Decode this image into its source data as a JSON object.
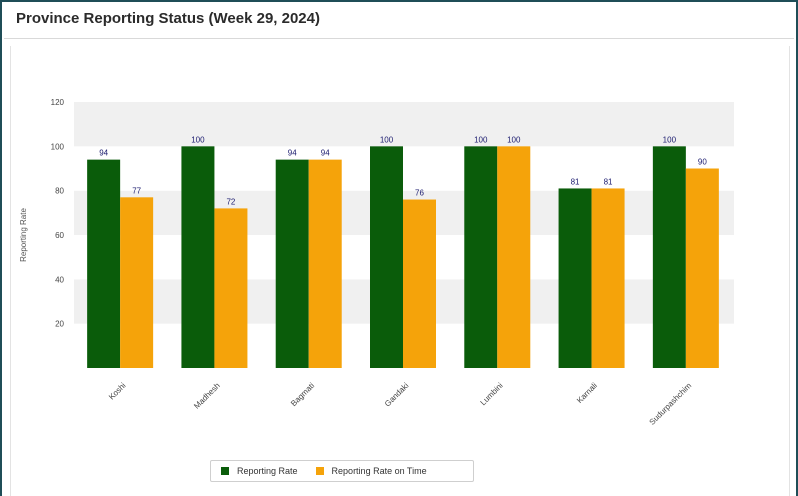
{
  "title": "Province Reporting Status (Week 29, 2024)",
  "colors": {
    "reporting_rate": "#0a5c0a",
    "reporting_rate_on_time": "#f5a30a"
  },
  "chart_data": {
    "type": "bar",
    "categories": [
      "Koshi",
      "Madhesh",
      "Bagmati",
      "Gandaki",
      "Lumbini",
      "Karnali",
      "Sudurpashchim"
    ],
    "series": [
      {
        "name": "Reporting Rate",
        "values": [
          94,
          100,
          94,
          100,
          100,
          81,
          100
        ]
      },
      {
        "name": "Reporting Rate on Time",
        "values": [
          77,
          72,
          94,
          76,
          100,
          81,
          90
        ]
      }
    ],
    "ylabel": "Reporting Rate",
    "xlabel": "",
    "ylim": [
      0,
      120
    ],
    "yticks": [
      20,
      40,
      60,
      80,
      100,
      120
    ],
    "grid": "horizontal bands",
    "legend": "bottom"
  },
  "legend": {
    "reporting_rate_label": "Reporting Rate",
    "reporting_rate_on_time_label": "Reporting Rate on Time"
  }
}
